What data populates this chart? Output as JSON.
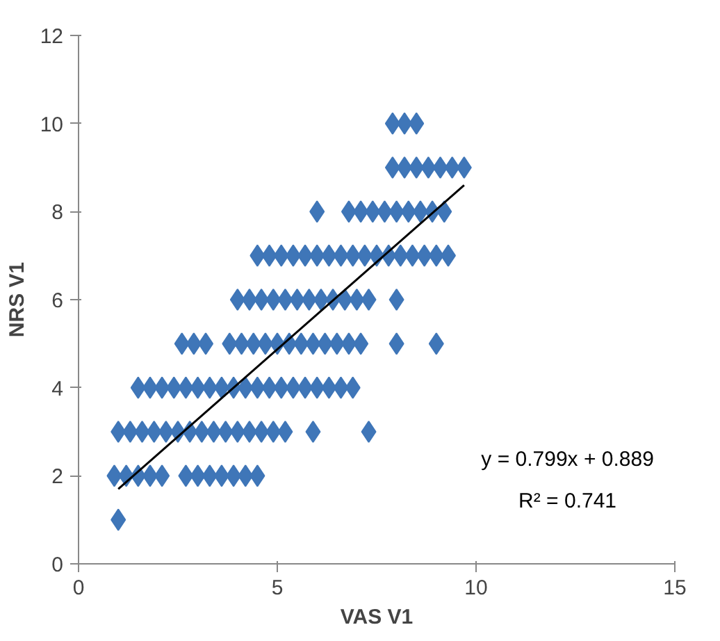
{
  "chart_data": {
    "type": "scatter",
    "xlabel": "VAS V1",
    "ylabel": "NRS V1",
    "xlim": [
      0,
      15
    ],
    "xticks": [
      0,
      5,
      10,
      15
    ],
    "ylim": [
      0,
      12
    ],
    "yticks": [
      0,
      2,
      4,
      6,
      8,
      10,
      12
    ],
    "grid": false,
    "annotations": [
      "y = 0.799x + 0.889",
      "R² = 0.741"
    ],
    "series": [
      {
        "marker": "diamond",
        "color": "#3f76b8",
        "x": [
          1.0,
          0.9,
          1.2,
          1.5,
          1.8,
          2.1,
          2.7,
          3.0,
          3.3,
          3.6,
          3.9,
          4.2,
          4.5,
          1.0,
          1.3,
          1.6,
          1.9,
          2.2,
          2.5,
          2.8,
          3.1,
          3.4,
          3.7,
          4.0,
          4.3,
          4.6,
          4.9,
          5.2,
          5.9,
          7.3,
          1.5,
          1.8,
          2.1,
          2.4,
          2.7,
          3.0,
          3.3,
          3.6,
          3.9,
          4.2,
          4.5,
          4.8,
          5.1,
          5.4,
          5.7,
          6.0,
          6.3,
          6.6,
          6.9,
          2.6,
          2.9,
          3.2,
          3.8,
          4.1,
          4.4,
          4.7,
          5.0,
          5.3,
          5.6,
          5.9,
          6.2,
          6.5,
          6.8,
          7.1,
          8.0,
          9.0,
          4.0,
          4.3,
          4.6,
          4.9,
          5.2,
          5.5,
          5.8,
          6.1,
          6.4,
          6.7,
          7.0,
          7.3,
          8.0,
          4.5,
          4.8,
          5.1,
          5.4,
          5.7,
          6.0,
          6.3,
          6.6,
          6.9,
          7.2,
          7.5,
          7.8,
          8.1,
          8.4,
          8.7,
          9.0,
          9.3,
          6.0,
          6.8,
          7.1,
          7.4,
          7.7,
          8.0,
          8.3,
          8.6,
          8.9,
          9.2,
          7.9,
          8.2,
          8.5,
          8.8,
          9.1,
          9.4,
          9.7,
          7.9,
          8.2,
          8.5
        ],
        "values": [
          1,
          2,
          2,
          2,
          2,
          2,
          2,
          2,
          2,
          2,
          2,
          2,
          2,
          3,
          3,
          3,
          3,
          3,
          3,
          3,
          3,
          3,
          3,
          3,
          3,
          3,
          3,
          3,
          3,
          3,
          4,
          4,
          4,
          4,
          4,
          4,
          4,
          4,
          4,
          4,
          4,
          4,
          4,
          4,
          4,
          4,
          4,
          4,
          4,
          5,
          5,
          5,
          5,
          5,
          5,
          5,
          5,
          5,
          5,
          5,
          5,
          5,
          5,
          5,
          5,
          5,
          6,
          6,
          6,
          6,
          6,
          6,
          6,
          6,
          6,
          6,
          6,
          6,
          6,
          7,
          7,
          7,
          7,
          7,
          7,
          7,
          7,
          7,
          7,
          7,
          7,
          7,
          7,
          7,
          7,
          7,
          8,
          8,
          8,
          8,
          8,
          8,
          8,
          8,
          8,
          8,
          9,
          9,
          9,
          9,
          9,
          9,
          9,
          10,
          10,
          10
        ]
      },
      {
        "type": "line",
        "color": "#000000",
        "x": [
          1.0,
          9.7
        ],
        "values": [
          1.7,
          8.6
        ]
      }
    ]
  }
}
